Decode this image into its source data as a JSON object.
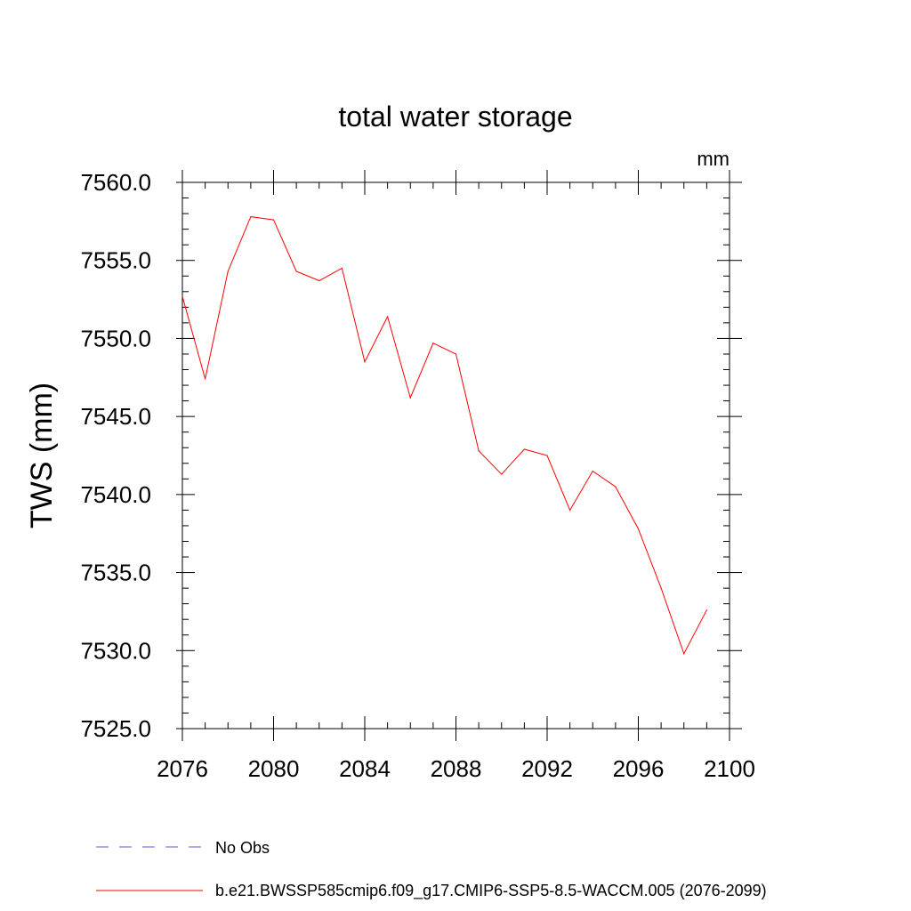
{
  "chart_data": {
    "type": "line",
    "title": "total water storage",
    "units_label": "mm",
    "ylabel": "TWS  (mm)",
    "xlabel": "",
    "xlim": [
      2076,
      2100
    ],
    "ylim": [
      7525.0,
      7560.0
    ],
    "x_ticks": [
      "2076",
      "2080",
      "2084",
      "2088",
      "2092",
      "2096",
      "2100"
    ],
    "y_ticks": [
      "7525.0",
      "7530.0",
      "7535.0",
      "7540.0",
      "7545.0",
      "7550.0",
      "7555.0",
      "7560.0"
    ],
    "grid": false,
    "legend_position": "bottom",
    "series": [
      {
        "name": "b.e21.BWSSP585cmip6.f09_g17.CMIP6-SSP5-8.5-WACCM.005 (2076-2099)",
        "color": "#ff0000",
        "style": "solid",
        "x": [
          2076,
          2077,
          2078,
          2079,
          2080,
          2081,
          2082,
          2083,
          2084,
          2085,
          2086,
          2087,
          2088,
          2089,
          2090,
          2091,
          2092,
          2093,
          2094,
          2095,
          2096,
          2097,
          2098,
          2099
        ],
        "values": [
          7552.7,
          7547.4,
          7554.3,
          7557.8,
          7557.6,
          7554.3,
          7553.7,
          7554.5,
          7548.5,
          7551.4,
          7546.2,
          7549.7,
          7549.0,
          7542.8,
          7541.3,
          7542.9,
          7542.5,
          7539.0,
          7541.5,
          7540.5,
          7537.8,
          7534.0,
          7529.8,
          7532.6
        ]
      }
    ],
    "legend": [
      {
        "label": "No Obs",
        "color": "#6a5acd",
        "style": "dashed"
      },
      {
        "label": "b.e21.BWSSP585cmip6.f09_g17.CMIP6-SSP5-8.5-WACCM.005 (2076-2099)",
        "color": "#ff0000",
        "style": "solid"
      }
    ]
  }
}
